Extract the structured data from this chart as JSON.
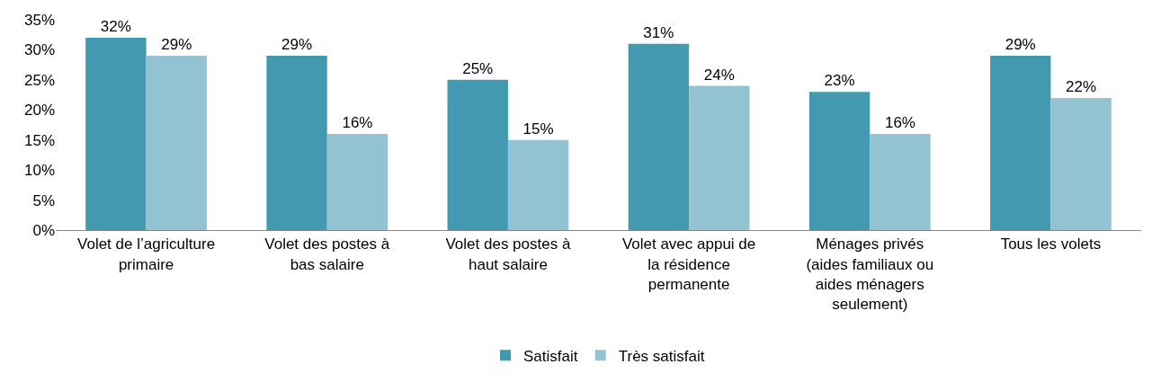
{
  "chart_data": {
    "type": "bar",
    "categories": [
      "Volet de l’agriculture\nprimaire",
      "Volet des postes à\nbas salaire",
      "Volet des postes à\nhaut salaire",
      "Volet avec appui de\nla résidence\npermanente",
      "Ménages privés\n(aides familiaux ou\naides ménagers\nseulement)",
      "Tous les volets"
    ],
    "series": [
      {
        "name": "Satisfait",
        "color": "#4299b0",
        "values": [
          32,
          29,
          25,
          31,
          23,
          29
        ],
        "value_labels": [
          "32%",
          "29%",
          "25%",
          "31%",
          "23%",
          "29%"
        ]
      },
      {
        "name": "Très satisfait",
        "color": "#93c3d3",
        "values": [
          29,
          16,
          15,
          24,
          16,
          22
        ],
        "value_labels": [
          "29%",
          "16%",
          "15%",
          "24%",
          "16%",
          "22%"
        ]
      }
    ],
    "ylim": [
      0,
      35
    ],
    "yticks": [
      {
        "value": 0,
        "label": "0%"
      },
      {
        "value": 5,
        "label": "5%"
      },
      {
        "value": 10,
        "label": "10%"
      },
      {
        "value": 15,
        "label": "15%"
      },
      {
        "value": 20,
        "label": "20%"
      },
      {
        "value": 25,
        "label": "25%"
      },
      {
        "value": 30,
        "label": "30%"
      },
      {
        "value": 35,
        "label": "35%"
      }
    ],
    "grid": false,
    "legend": "bottom"
  }
}
